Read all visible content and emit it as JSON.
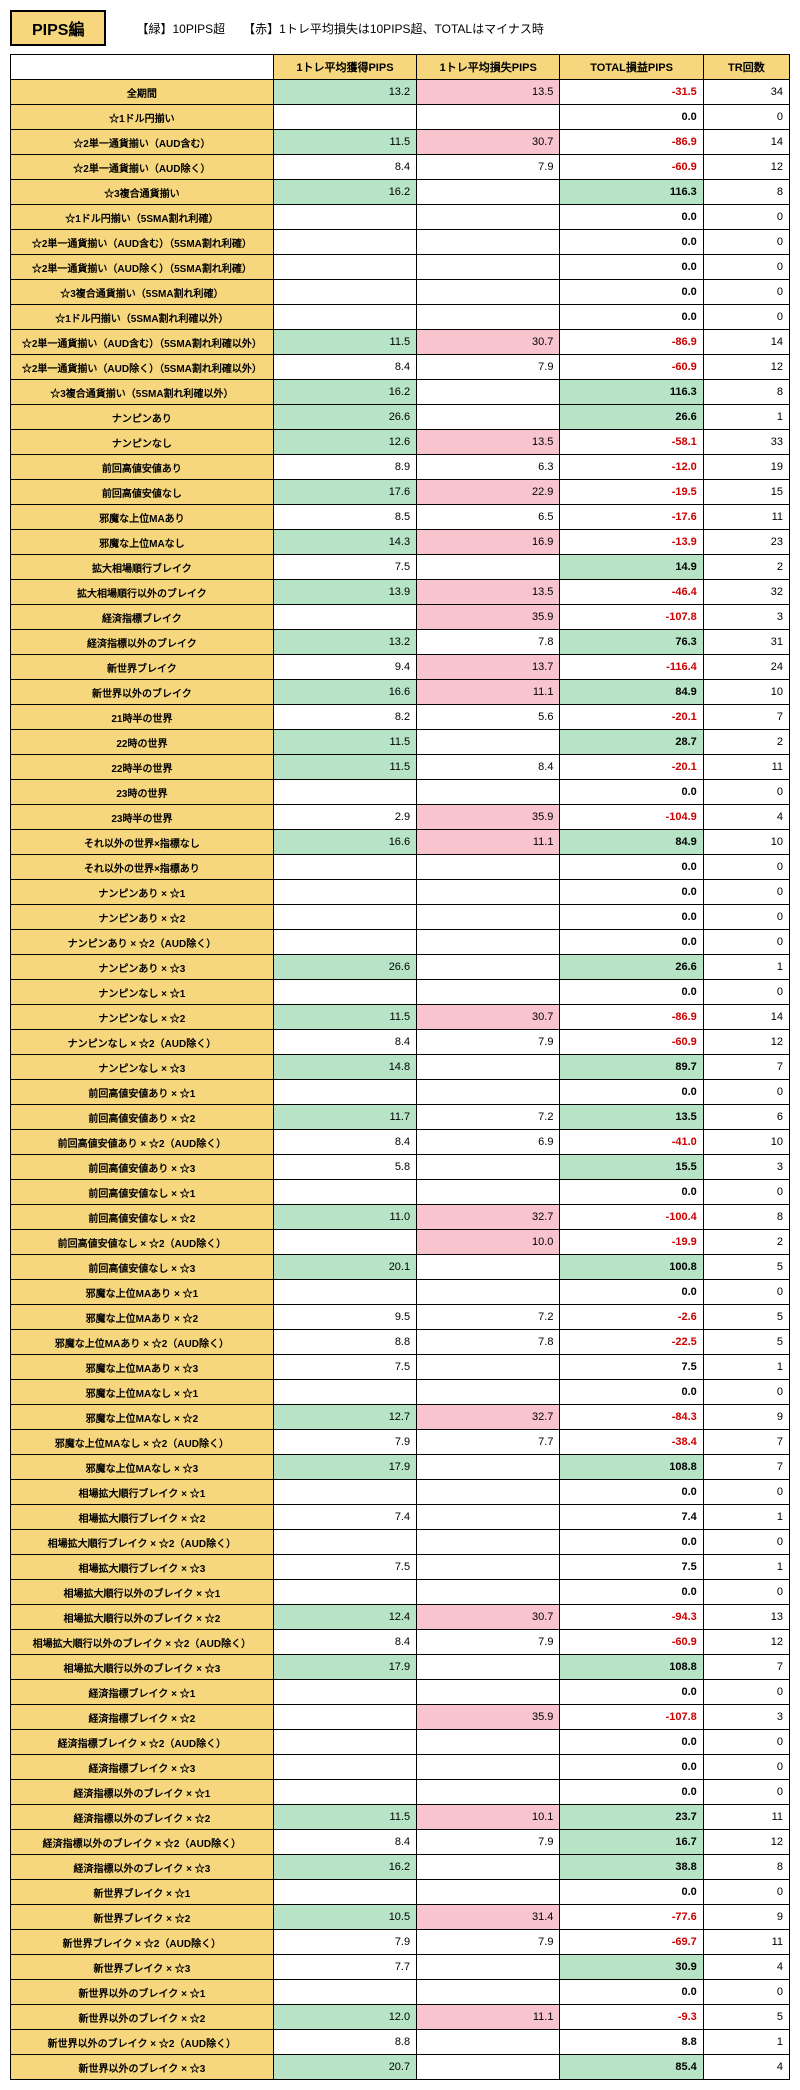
{
  "header": {
    "title": "PIPS編",
    "legend": "【緑】10PIPS超　　【赤】1トレ平均損失は10PIPS超、TOTALはマイナス時"
  },
  "colors": {
    "header_bg": "#f7d77e",
    "green_bg": "#b7e4c7",
    "pink_bg": "#f8c4ce",
    "red_text": "#cc0000"
  },
  "columns": [
    "1トレ平均獲得PIPS",
    "1トレ平均損失PIPS",
    "TOTAL損益PIPS",
    "TR回数"
  ],
  "rows": [
    {
      "label": "全期間",
      "c1": "13.2",
      "c1s": "green",
      "c2": "13.5",
      "c2s": "pink",
      "c3": "-31.5",
      "c3s": "red",
      "tr": "34"
    },
    {
      "label": "☆1ドル円揃い",
      "c1": "",
      "c2": "",
      "c3": "0.0",
      "c3s": "bold",
      "tr": "0"
    },
    {
      "label": "☆2単一通貨揃い（AUD含む）",
      "c1": "11.5",
      "c1s": "green",
      "c2": "30.7",
      "c2s": "pink",
      "c3": "-86.9",
      "c3s": "red",
      "tr": "14"
    },
    {
      "label": "☆2単一通貨揃い（AUD除く）",
      "c1": "8.4",
      "c2": "7.9",
      "c3": "-60.9",
      "c3s": "red",
      "tr": "12"
    },
    {
      "label": "☆3複合通貨揃い",
      "c1": "16.2",
      "c1s": "green",
      "c2": "",
      "c3": "116.3",
      "c3s": "greenbold",
      "tr": "8"
    },
    {
      "label": "☆1ドル円揃い（5SMA割れ利確）",
      "c1": "",
      "c2": "",
      "c3": "0.0",
      "c3s": "bold",
      "tr": "0"
    },
    {
      "label": "☆2単一通貨揃い（AUD含む）（5SMA割れ利確）",
      "c1": "",
      "c2": "",
      "c3": "0.0",
      "c3s": "bold",
      "tr": "0"
    },
    {
      "label": "☆2単一通貨揃い（AUD除く）（5SMA割れ利確）",
      "c1": "",
      "c2": "",
      "c3": "0.0",
      "c3s": "bold",
      "tr": "0"
    },
    {
      "label": "☆3複合通貨揃い（5SMA割れ利確）",
      "c1": "",
      "c2": "",
      "c3": "0.0",
      "c3s": "bold",
      "tr": "0"
    },
    {
      "label": "☆1ドル円揃い（5SMA割れ利確以外）",
      "c1": "",
      "c2": "",
      "c3": "0.0",
      "c3s": "bold",
      "tr": "0"
    },
    {
      "label": "☆2単一通貨揃い（AUD含む）（5SMA割れ利確以外）",
      "c1": "11.5",
      "c1s": "green",
      "c2": "30.7",
      "c2s": "pink",
      "c3": "-86.9",
      "c3s": "red",
      "tr": "14"
    },
    {
      "label": "☆2単一通貨揃い（AUD除く）（5SMA割れ利確以外）",
      "c1": "8.4",
      "c2": "7.9",
      "c3": "-60.9",
      "c3s": "red",
      "tr": "12"
    },
    {
      "label": "☆3複合通貨揃い（5SMA割れ利確以外）",
      "c1": "16.2",
      "c1s": "green",
      "c2": "",
      "c3": "116.3",
      "c3s": "greenbold",
      "tr": "8"
    },
    {
      "label": "ナンピンあり",
      "c1": "26.6",
      "c1s": "green",
      "c2": "",
      "c3": "26.6",
      "c3s": "greenbold",
      "tr": "1"
    },
    {
      "label": "ナンピンなし",
      "c1": "12.6",
      "c1s": "green",
      "c2": "13.5",
      "c2s": "pink",
      "c3": "-58.1",
      "c3s": "red",
      "tr": "33"
    },
    {
      "label": "前回高値安値あり",
      "c1": "8.9",
      "c2": "6.3",
      "c3": "-12.0",
      "c3s": "red",
      "tr": "19"
    },
    {
      "label": "前回高値安値なし",
      "c1": "17.6",
      "c1s": "green",
      "c2": "22.9",
      "c2s": "pink",
      "c3": "-19.5",
      "c3s": "red",
      "tr": "15"
    },
    {
      "label": "邪魔な上位MAあり",
      "c1": "8.5",
      "c2": "6.5",
      "c3": "-17.6",
      "c3s": "red",
      "tr": "11"
    },
    {
      "label": "邪魔な上位MAなし",
      "c1": "14.3",
      "c1s": "green",
      "c2": "16.9",
      "c2s": "pink",
      "c3": "-13.9",
      "c3s": "red",
      "tr": "23"
    },
    {
      "label": "拡大相場順行ブレイク",
      "c1": "7.5",
      "c2": "",
      "c3": "14.9",
      "c3s": "greenbold",
      "tr": "2"
    },
    {
      "label": "拡大相場順行以外のブレイク",
      "c1": "13.9",
      "c1s": "green",
      "c2": "13.5",
      "c2s": "pink",
      "c3": "-46.4",
      "c3s": "red",
      "tr": "32"
    },
    {
      "label": "経済指標ブレイク",
      "c1": "",
      "c2": "35.9",
      "c2s": "pink",
      "c3": "-107.8",
      "c3s": "red",
      "tr": "3"
    },
    {
      "label": "経済指標以外のブレイク",
      "c1": "13.2",
      "c1s": "green",
      "c2": "7.8",
      "c3": "76.3",
      "c3s": "greenbold",
      "tr": "31"
    },
    {
      "label": "新世界ブレイク",
      "c1": "9.4",
      "c2": "13.7",
      "c2s": "pink",
      "c3": "-116.4",
      "c3s": "red",
      "tr": "24"
    },
    {
      "label": "新世界以外のブレイク",
      "c1": "16.6",
      "c1s": "green",
      "c2": "11.1",
      "c2s": "pink",
      "c3": "84.9",
      "c3s": "greenbold",
      "tr": "10"
    },
    {
      "label": "21時半の世界",
      "c1": "8.2",
      "c2": "5.6",
      "c3": "-20.1",
      "c3s": "red",
      "tr": "7"
    },
    {
      "label": "22時の世界",
      "c1": "11.5",
      "c1s": "green",
      "c2": "",
      "c3": "28.7",
      "c3s": "greenbold",
      "tr": "2"
    },
    {
      "label": "22時半の世界",
      "c1": "11.5",
      "c1s": "green",
      "c2": "8.4",
      "c3": "-20.1",
      "c3s": "red",
      "tr": "11"
    },
    {
      "label": "23時の世界",
      "c1": "",
      "c2": "",
      "c3": "0.0",
      "c3s": "bold",
      "tr": "0"
    },
    {
      "label": "23時半の世界",
      "c1": "2.9",
      "c2": "35.9",
      "c2s": "pink",
      "c3": "-104.9",
      "c3s": "red",
      "tr": "4"
    },
    {
      "label": "それ以外の世界×指標なし",
      "c1": "16.6",
      "c1s": "green",
      "c2": "11.1",
      "c2s": "pink",
      "c3": "84.9",
      "c3s": "greenbold",
      "tr": "10"
    },
    {
      "label": "それ以外の世界×指標あり",
      "c1": "",
      "c2": "",
      "c3": "0.0",
      "c3s": "bold",
      "tr": "0"
    },
    {
      "label": "ナンピンあり × ☆1",
      "c1": "",
      "c2": "",
      "c3": "0.0",
      "c3s": "bold",
      "tr": "0"
    },
    {
      "label": "ナンピンあり × ☆2",
      "c1": "",
      "c2": "",
      "c3": "0.0",
      "c3s": "bold",
      "tr": "0"
    },
    {
      "label": "ナンピンあり × ☆2（AUD除く）",
      "c1": "",
      "c2": "",
      "c3": "0.0",
      "c3s": "bold",
      "tr": "0"
    },
    {
      "label": "ナンピンあり × ☆3",
      "c1": "26.6",
      "c1s": "green",
      "c2": "",
      "c3": "26.6",
      "c3s": "greenbold",
      "tr": "1"
    },
    {
      "label": "ナンピンなし × ☆1",
      "c1": "",
      "c2": "",
      "c3": "0.0",
      "c3s": "bold",
      "tr": "0"
    },
    {
      "label": "ナンピンなし × ☆2",
      "c1": "11.5",
      "c1s": "green",
      "c2": "30.7",
      "c2s": "pink",
      "c3": "-86.9",
      "c3s": "red",
      "tr": "14"
    },
    {
      "label": "ナンピンなし × ☆2（AUD除く）",
      "c1": "8.4",
      "c2": "7.9",
      "c3": "-60.9",
      "c3s": "red",
      "tr": "12"
    },
    {
      "label": "ナンピンなし × ☆3",
      "c1": "14.8",
      "c1s": "green",
      "c2": "",
      "c3": "89.7",
      "c3s": "greenbold",
      "tr": "7"
    },
    {
      "label": "前回高値安値あり × ☆1",
      "c1": "",
      "c2": "",
      "c3": "0.0",
      "c3s": "bold",
      "tr": "0"
    },
    {
      "label": "前回高値安値あり × ☆2",
      "c1": "11.7",
      "c1s": "green",
      "c2": "7.2",
      "c3": "13.5",
      "c3s": "greenbold",
      "tr": "6"
    },
    {
      "label": "前回高値安値あり × ☆2（AUD除く）",
      "c1": "8.4",
      "c2": "6.9",
      "c3": "-41.0",
      "c3s": "red",
      "tr": "10"
    },
    {
      "label": "前回高値安値あり × ☆3",
      "c1": "5.8",
      "c2": "",
      "c3": "15.5",
      "c3s": "greenbold",
      "tr": "3"
    },
    {
      "label": "前回高値安値なし × ☆1",
      "c1": "",
      "c2": "",
      "c3": "0.0",
      "c3s": "bold",
      "tr": "0"
    },
    {
      "label": "前回高値安値なし × ☆2",
      "c1": "11.0",
      "c1s": "green",
      "c2": "32.7",
      "c2s": "pink",
      "c3": "-100.4",
      "c3s": "red",
      "tr": "8"
    },
    {
      "label": "前回高値安値なし × ☆2（AUD除く）",
      "c1": "",
      "c2": "10.0",
      "c2s": "pink",
      "c3": "-19.9",
      "c3s": "red",
      "tr": "2"
    },
    {
      "label": "前回高値安値なし × ☆3",
      "c1": "20.1",
      "c1s": "green",
      "c2": "",
      "c3": "100.8",
      "c3s": "greenbold",
      "tr": "5"
    },
    {
      "label": "邪魔な上位MAあり × ☆1",
      "c1": "",
      "c2": "",
      "c3": "0.0",
      "c3s": "bold",
      "tr": "0"
    },
    {
      "label": "邪魔な上位MAあり × ☆2",
      "c1": "9.5",
      "c2": "7.2",
      "c3": "-2.6",
      "c3s": "red",
      "tr": "5"
    },
    {
      "label": "邪魔な上位MAあり × ☆2（AUD除く）",
      "c1": "8.8",
      "c2": "7.8",
      "c3": "-22.5",
      "c3s": "red",
      "tr": "5"
    },
    {
      "label": "邪魔な上位MAあり × ☆3",
      "c1": "7.5",
      "c2": "",
      "c3": "7.5",
      "c3s": "bold",
      "tr": "1"
    },
    {
      "label": "邪魔な上位MAなし × ☆1",
      "c1": "",
      "c2": "",
      "c3": "0.0",
      "c3s": "bold",
      "tr": "0"
    },
    {
      "label": "邪魔な上位MAなし × ☆2",
      "c1": "12.7",
      "c1s": "green",
      "c2": "32.7",
      "c2s": "pink",
      "c3": "-84.3",
      "c3s": "red",
      "tr": "9"
    },
    {
      "label": "邪魔な上位MAなし × ☆2（AUD除く）",
      "c1": "7.9",
      "c2": "7.7",
      "c3": "-38.4",
      "c3s": "red",
      "tr": "7"
    },
    {
      "label": "邪魔な上位MAなし × ☆3",
      "c1": "17.9",
      "c1s": "green",
      "c2": "",
      "c3": "108.8",
      "c3s": "greenbold",
      "tr": "7"
    },
    {
      "label": "相場拡大順行ブレイク × ☆1",
      "c1": "",
      "c2": "",
      "c3": "0.0",
      "c3s": "bold",
      "tr": "0"
    },
    {
      "label": "相場拡大順行ブレイク × ☆2",
      "c1": "7.4",
      "c2": "",
      "c3": "7.4",
      "c3s": "bold",
      "tr": "1"
    },
    {
      "label": "相場拡大順行ブレイク × ☆2（AUD除く）",
      "c1": "",
      "c2": "",
      "c3": "0.0",
      "c3s": "bold",
      "tr": "0"
    },
    {
      "label": "相場拡大順行ブレイク × ☆3",
      "c1": "7.5",
      "c2": "",
      "c3": "7.5",
      "c3s": "bold",
      "tr": "1"
    },
    {
      "label": "相場拡大順行以外のブレイク × ☆1",
      "c1": "",
      "c2": "",
      "c3": "0.0",
      "c3s": "bold",
      "tr": "0"
    },
    {
      "label": "相場拡大順行以外のブレイク × ☆2",
      "c1": "12.4",
      "c1s": "green",
      "c2": "30.7",
      "c2s": "pink",
      "c3": "-94.3",
      "c3s": "red",
      "tr": "13"
    },
    {
      "label": "相場拡大順行以外のブレイク × ☆2（AUD除く）",
      "c1": "8.4",
      "c2": "7.9",
      "c3": "-60.9",
      "c3s": "red",
      "tr": "12"
    },
    {
      "label": "相場拡大順行以外のブレイク × ☆3",
      "c1": "17.9",
      "c1s": "green",
      "c2": "",
      "c3": "108.8",
      "c3s": "greenbold",
      "tr": "7"
    },
    {
      "label": "経済指標ブレイク × ☆1",
      "c1": "",
      "c2": "",
      "c3": "0.0",
      "c3s": "bold",
      "tr": "0"
    },
    {
      "label": "経済指標ブレイク × ☆2",
      "c1": "",
      "c2": "35.9",
      "c2s": "pink",
      "c3": "-107.8",
      "c3s": "red",
      "tr": "3"
    },
    {
      "label": "経済指標ブレイク × ☆2（AUD除く）",
      "c1": "",
      "c2": "",
      "c3": "0.0",
      "c3s": "bold",
      "tr": "0"
    },
    {
      "label": "経済指標ブレイク × ☆3",
      "c1": "",
      "c2": "",
      "c3": "0.0",
      "c3s": "bold",
      "tr": "0"
    },
    {
      "label": "経済指標以外のブレイク × ☆1",
      "c1": "",
      "c2": "",
      "c3": "0.0",
      "c3s": "bold",
      "tr": "0"
    },
    {
      "label": "経済指標以外のブレイク × ☆2",
      "c1": "11.5",
      "c1s": "green",
      "c2": "10.1",
      "c2s": "pink",
      "c3": "23.7",
      "c3s": "greenbold",
      "tr": "11"
    },
    {
      "label": "経済指標以外のブレイク × ☆2（AUD除く）",
      "c1": "8.4",
      "c2": "7.9",
      "c3": "16.7",
      "c3s": "greenbold",
      "tr": "12"
    },
    {
      "label": "経済指標以外のブレイク × ☆3",
      "c1": "16.2",
      "c1s": "green",
      "c2": "",
      "c3": "38.8",
      "c3s": "greenbold",
      "tr": "8"
    },
    {
      "label": "新世界ブレイク × ☆1",
      "c1": "",
      "c2": "",
      "c3": "0.0",
      "c3s": "bold",
      "tr": "0"
    },
    {
      "label": "新世界ブレイク × ☆2",
      "c1": "10.5",
      "c1s": "green",
      "c2": "31.4",
      "c2s": "pink",
      "c3": "-77.6",
      "c3s": "red",
      "tr": "9"
    },
    {
      "label": "新世界ブレイク × ☆2（AUD除く）",
      "c1": "7.9",
      "c2": "7.9",
      "c3": "-69.7",
      "c3s": "red",
      "tr": "11"
    },
    {
      "label": "新世界ブレイク × ☆3",
      "c1": "7.7",
      "c2": "",
      "c3": "30.9",
      "c3s": "greenbold",
      "tr": "4"
    },
    {
      "label": "新世界以外のブレイク × ☆1",
      "c1": "",
      "c2": "",
      "c3": "0.0",
      "c3s": "bold",
      "tr": "0"
    },
    {
      "label": "新世界以外のブレイク × ☆2",
      "c1": "12.0",
      "c1s": "green",
      "c2": "11.1",
      "c2s": "pink",
      "c3": "-9.3",
      "c3s": "red",
      "tr": "5"
    },
    {
      "label": "新世界以外のブレイク × ☆2（AUD除く）",
      "c1": "8.8",
      "c2": "",
      "c3": "8.8",
      "c3s": "bold",
      "tr": "1"
    },
    {
      "label": "新世界以外のブレイク × ☆3",
      "c1": "20.7",
      "c1s": "green",
      "c2": "",
      "c3": "85.4",
      "c3s": "greenbold",
      "tr": "4"
    }
  ]
}
